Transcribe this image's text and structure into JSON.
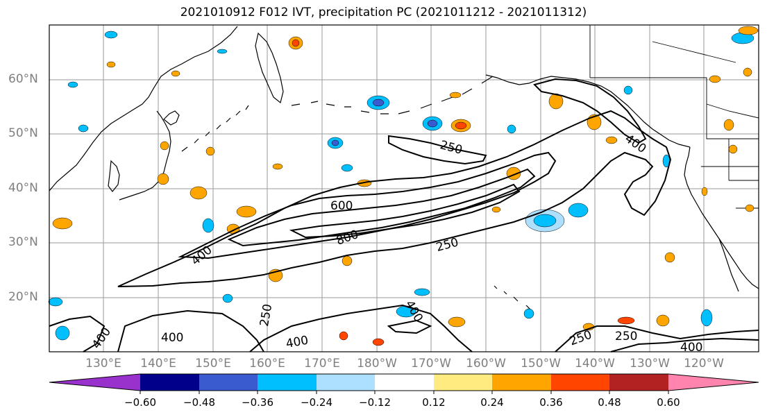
{
  "title": "2021010912 F012 IVT, precipitation PC (2021011212 - 2021011312)",
  "lat_labels": [
    "60°N",
    "50°N",
    "40°N",
    "30°N",
    "20°N"
  ],
  "lon_labels": [
    "130°E",
    "140°E",
    "150°E",
    "160°E",
    "170°E",
    "180°W",
    "170°W",
    "160°W",
    "150°W",
    "140°W",
    "130°W",
    "120°W"
  ],
  "contour_labels": [
    "250",
    "400",
    "600",
    "800",
    "250",
    "400",
    "400",
    "250",
    "400",
    "400",
    "400",
    "250",
    "250",
    "400"
  ],
  "colorbar": {
    "colors": [
      "#9932CC",
      "#00008B",
      "#3A5BD0",
      "#00BFFF",
      "#ADDFFF",
      "#FFFFFF",
      "#FFEB80",
      "#FFA500",
      "#FF4500",
      "#B22222",
      "#FF85AF"
    ],
    "tick_labels": [
      "−0.60",
      "−0.48",
      "−0.36",
      "−0.24",
      "−0.12",
      "0.12",
      "0.24",
      "0.36",
      "0.48",
      "0.60"
    ]
  },
  "colors": {
    "contour": "#000000",
    "grid": "#9a9a9a",
    "coast": "#000000"
  }
}
